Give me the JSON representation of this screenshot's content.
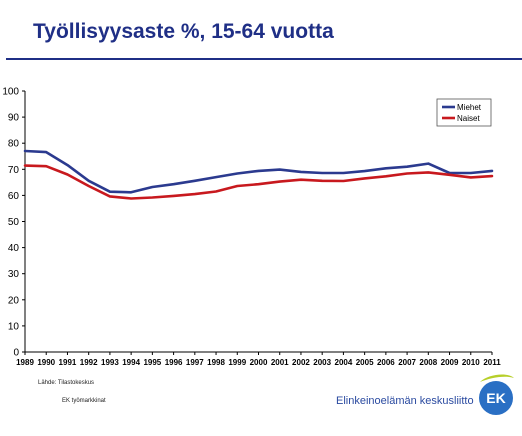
{
  "slide": {
    "title": "Työllisyysaste %, 15-64 vuotta",
    "source_label": "Lähde: Tilastokeskus",
    "source_sub": "EK työmarkkinat",
    "org_name": "Elinkeinoelämän keskusliitto",
    "logo_text": "EK",
    "title_color": "#1f2f86"
  },
  "chart_data": {
    "type": "line",
    "title": "",
    "xlabel": "",
    "ylabel": "",
    "x": [
      "1989",
      "1990",
      "1991",
      "1992",
      "1993",
      "1994",
      "1995",
      "1996",
      "1997",
      "1998",
      "1999",
      "2000",
      "2001",
      "2002",
      "2003",
      "2004",
      "2005",
      "2006",
      "2007",
      "2008",
      "2009",
      "2010",
      "2011"
    ],
    "ylim": [
      0,
      100
    ],
    "yticks": [
      0,
      10,
      20,
      30,
      40,
      50,
      60,
      70,
      80,
      90,
      100
    ],
    "grid": false,
    "legend_position": "top-right",
    "series": [
      {
        "name": "Miehet",
        "color": "#2b3a8f",
        "values": [
          77.0,
          76.6,
          71.6,
          65.6,
          61.4,
          61.2,
          63.2,
          64.3,
          65.6,
          67.0,
          68.4,
          69.4,
          69.9,
          69.0,
          68.6,
          68.6,
          69.3,
          70.4,
          71.0,
          72.2,
          68.6,
          68.6,
          69.4
        ]
      },
      {
        "name": "Naiset",
        "color": "#c8191e",
        "values": [
          71.4,
          71.2,
          68.0,
          63.6,
          59.6,
          58.8,
          59.2,
          59.8,
          60.5,
          61.5,
          63.6,
          64.3,
          65.3,
          66.0,
          65.6,
          65.5,
          66.5,
          67.3,
          68.4,
          68.8,
          67.9,
          66.9,
          67.4
        ]
      }
    ]
  }
}
